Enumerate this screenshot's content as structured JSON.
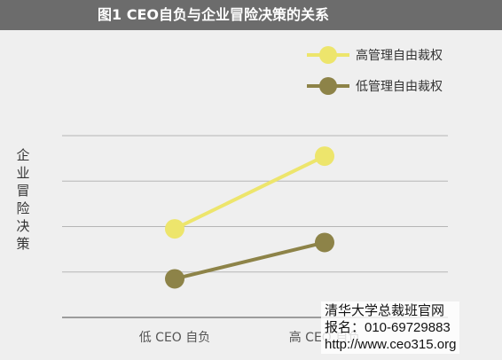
{
  "header": {
    "title": "图1  CEO自负与企业冒险决策的关系"
  },
  "colors": {
    "title_bg": "#6c6c6c",
    "plot_bg": "#efefef",
    "grid": "#b5b5b5",
    "high_series": "#ede56c",
    "low_series": "#8d8348"
  },
  "chart_data": {
    "type": "line",
    "title": "图1  CEO自负与企业冒险决策的关系",
    "xlabel": "",
    "ylabel": "企业冒险决策",
    "categories": [
      "低 CEO 自负",
      "高 CEO 自负"
    ],
    "series": [
      {
        "name": "高管理自由裁权",
        "values": [
          1.95,
          3.55
        ],
        "color": "#ede56c"
      },
      {
        "name": "低管理自由裁权",
        "values": [
          0.85,
          1.65
        ],
        "color": "#8d8348"
      }
    ],
    "ylim": [
      0,
      4
    ],
    "grid": true,
    "legend_position": "top-right"
  },
  "watermark": {
    "line1": "清华大学总裁班官网",
    "line2": "报名：010-69729883",
    "line3": "http://www.ceo315.org"
  }
}
